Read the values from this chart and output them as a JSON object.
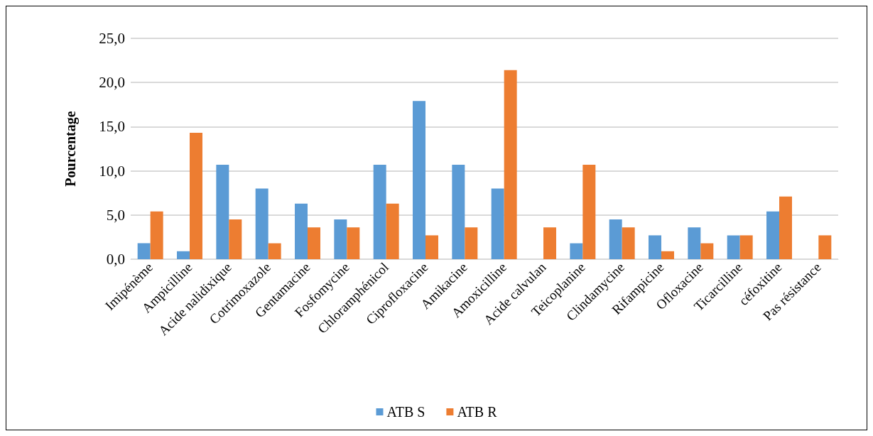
{
  "chart_data": {
    "type": "bar",
    "ylabel": "Pourcentage",
    "categories": [
      "Imipénème",
      "Ampicilline",
      "Acide nalidixique",
      "Cotrimoxazole",
      "Gentamacine",
      "Fosfomycine",
      "Chloramphénicol",
      "Ciprofloxacine",
      "Amikacine",
      "Amoxicilline",
      "Acide calvulan",
      "Teicoplanine",
      "Clindamycine",
      "Rifampicine",
      "Ofloxacine",
      "Ticarcilline",
      "céfoxitine",
      "Pas résistance"
    ],
    "series": [
      {
        "name": "ATB S",
        "color": "#5b9bd5",
        "values": [
          1.8,
          0.9,
          10.7,
          8.0,
          6.3,
          4.5,
          10.7,
          17.9,
          10.7,
          8.0,
          null,
          1.8,
          4.5,
          2.7,
          3.6,
          2.7,
          5.4,
          null
        ]
      },
      {
        "name": "ATB R",
        "color": "#ed7d31",
        "values": [
          5.4,
          14.3,
          4.5,
          1.8,
          3.6,
          3.6,
          6.3,
          2.7,
          3.6,
          21.4,
          3.6,
          10.7,
          3.6,
          0.9,
          1.8,
          2.7,
          7.1,
          2.7
        ]
      }
    ],
    "ylim": [
      0,
      25
    ],
    "yticks": [
      {
        "value": 0,
        "label": "0,0"
      },
      {
        "value": 5,
        "label": "5,0"
      },
      {
        "value": 10,
        "label": "10,0"
      },
      {
        "value": 15,
        "label": "15,0"
      },
      {
        "value": 20,
        "label": "20,0"
      },
      {
        "value": 25,
        "label": "25,0"
      }
    ],
    "grid": "y",
    "legend": "bottom"
  }
}
